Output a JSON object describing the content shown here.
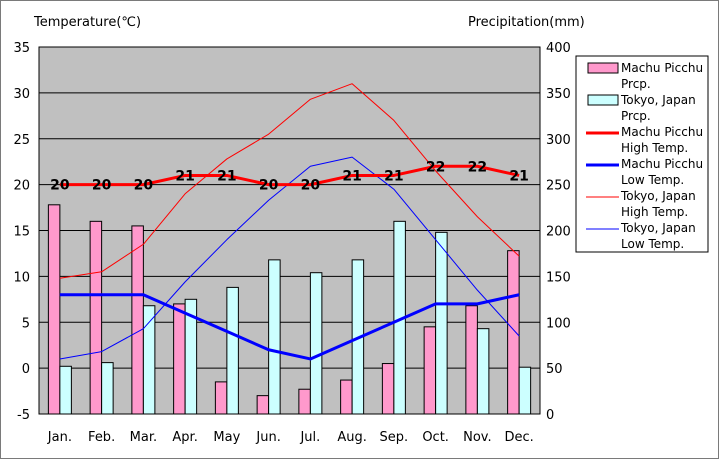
{
  "chart_data": {
    "type": "bar+line",
    "title": "",
    "y_left_label": "Temperature(℃)",
    "y_right_label": "Precipitation(mm)",
    "y_left_range": [
      -5,
      35
    ],
    "y_left_ticks": [
      "-5",
      "0",
      "5",
      "10",
      "15",
      "20",
      "25",
      "30",
      "35"
    ],
    "y_right_range": [
      0,
      400
    ],
    "y_right_ticks": [
      "0",
      "50",
      "100",
      "150",
      "200",
      "250",
      "300",
      "350",
      "400"
    ],
    "categories": [
      "Jan.",
      "Feb.",
      "Mar.",
      "Apr.",
      "May",
      "Jun.",
      "Jul.",
      "Aug.",
      "Sep.",
      "Oct.",
      "Nov.",
      "Dec."
    ],
    "bar_series": [
      {
        "name": "Machu Picchu Prcp.",
        "legend_lines": [
          "Machu Picchu",
          "Prcp."
        ],
        "color": "#ff99cc",
        "values": [
          228,
          210,
          205,
          120,
          35,
          20,
          27,
          37,
          55,
          95,
          118,
          178
        ]
      },
      {
        "name": "Tokyo, Japan Prcp.",
        "legend_lines": [
          "Tokyo, Japan",
          "Prcp."
        ],
        "color": "#ccffff",
        "values": [
          52,
          56,
          118,
          125,
          138,
          168,
          154,
          168,
          210,
          198,
          93,
          51
        ]
      }
    ],
    "line_series": [
      {
        "name": "Machu Picchu High Temp.",
        "legend_lines": [
          "Machu Picchu",
          "High Temp."
        ],
        "color": "#ff0000",
        "width": 3,
        "values": [
          20,
          20,
          20,
          21,
          21,
          20,
          20,
          21,
          21,
          22,
          22,
          21
        ],
        "data_labels": [
          "20",
          "20",
          "20",
          "21",
          "21",
          "20",
          "20",
          "21",
          "21",
          "22",
          "22",
          "21"
        ]
      },
      {
        "name": "Machu Picchu Low Temp.",
        "legend_lines": [
          "Machu Picchu",
          "Low Temp."
        ],
        "color": "#0000ff",
        "width": 3,
        "values": [
          8,
          8,
          8,
          6,
          4,
          2,
          1,
          3,
          5,
          7,
          7,
          8
        ]
      },
      {
        "name": "Tokyo, Japan High Temp.",
        "legend_lines": [
          "Tokyo, Japan",
          "High Temp."
        ],
        "color": "#ff0000",
        "width": 1,
        "values": [
          9.8,
          10.5,
          13.5,
          19,
          22.8,
          25.5,
          29.3,
          31,
          27,
          21.5,
          16.5,
          12.2
        ]
      },
      {
        "name": "Tokyo, Japan Low Temp.",
        "legend_lines": [
          "Tokyo, Japan",
          "Low Temp."
        ],
        "color": "#0000ff",
        "width": 1,
        "values": [
          1,
          1.8,
          4.3,
          9.4,
          14,
          18.3,
          22,
          23,
          19.5,
          14,
          8.5,
          3.5
        ]
      }
    ],
    "grid": true,
    "legend_position": "right",
    "plot_background": "#c0c0c0"
  }
}
